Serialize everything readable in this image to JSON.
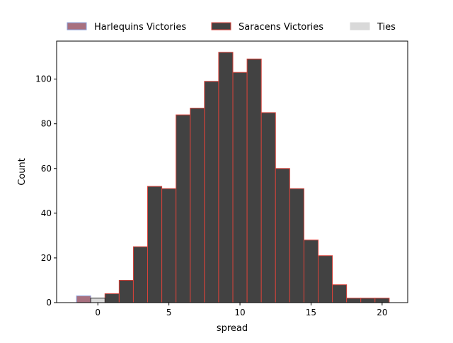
{
  "chart_data": {
    "type": "bar",
    "title": "",
    "xlabel": "spread",
    "ylabel": "Count",
    "xlim": [
      -2.9,
      21.8
    ],
    "ylim": [
      0,
      117
    ],
    "xticks": [
      0,
      5,
      10,
      15,
      20
    ],
    "yticks": [
      0,
      20,
      40,
      60,
      80,
      100
    ],
    "grid": false,
    "legend_position": "top",
    "bin_width": 1,
    "series": [
      {
        "name": "Harlequins Victories",
        "fill": "#a8707f",
        "edge": "#8a9fd8",
        "bins": [
          {
            "x0": -1.5,
            "x1": -0.5,
            "count": 3
          }
        ]
      },
      {
        "name": "Saracens Victories",
        "fill": "#424242",
        "edge": "#d9423a",
        "bins": [
          {
            "x0": 0.5,
            "x1": 1.5,
            "count": 4
          },
          {
            "x0": 1.5,
            "x1": 2.5,
            "count": 10
          },
          {
            "x0": 2.5,
            "x1": 3.5,
            "count": 25
          },
          {
            "x0": 3.5,
            "x1": 4.5,
            "count": 52
          },
          {
            "x0": 4.5,
            "x1": 5.5,
            "count": 51
          },
          {
            "x0": 5.5,
            "x1": 6.5,
            "count": 84
          },
          {
            "x0": 6.5,
            "x1": 7.5,
            "count": 87
          },
          {
            "x0": 7.5,
            "x1": 8.5,
            "count": 99
          },
          {
            "x0": 8.5,
            "x1": 9.5,
            "count": 112
          },
          {
            "x0": 9.5,
            "x1": 10.5,
            "count": 103
          },
          {
            "x0": 10.5,
            "x1": 11.5,
            "count": 109
          },
          {
            "x0": 11.5,
            "x1": 12.5,
            "count": 85
          },
          {
            "x0": 12.5,
            "x1": 13.5,
            "count": 60
          },
          {
            "x0": 13.5,
            "x1": 14.5,
            "count": 51
          },
          {
            "x0": 14.5,
            "x1": 15.5,
            "count": 28
          },
          {
            "x0": 15.5,
            "x1": 16.5,
            "count": 21
          },
          {
            "x0": 16.5,
            "x1": 17.5,
            "count": 8
          },
          {
            "x0": 17.5,
            "x1": 18.5,
            "count": 2
          },
          {
            "x0": 18.5,
            "x1": 19.5,
            "count": 2
          },
          {
            "x0": 19.5,
            "x1": 20.5,
            "count": 2
          }
        ]
      },
      {
        "name": "Ties",
        "fill": "#d9d9d9",
        "edge": "#222222",
        "bins": [
          {
            "x0": -0.5,
            "x1": 0.5,
            "count": 2
          }
        ]
      }
    ]
  }
}
